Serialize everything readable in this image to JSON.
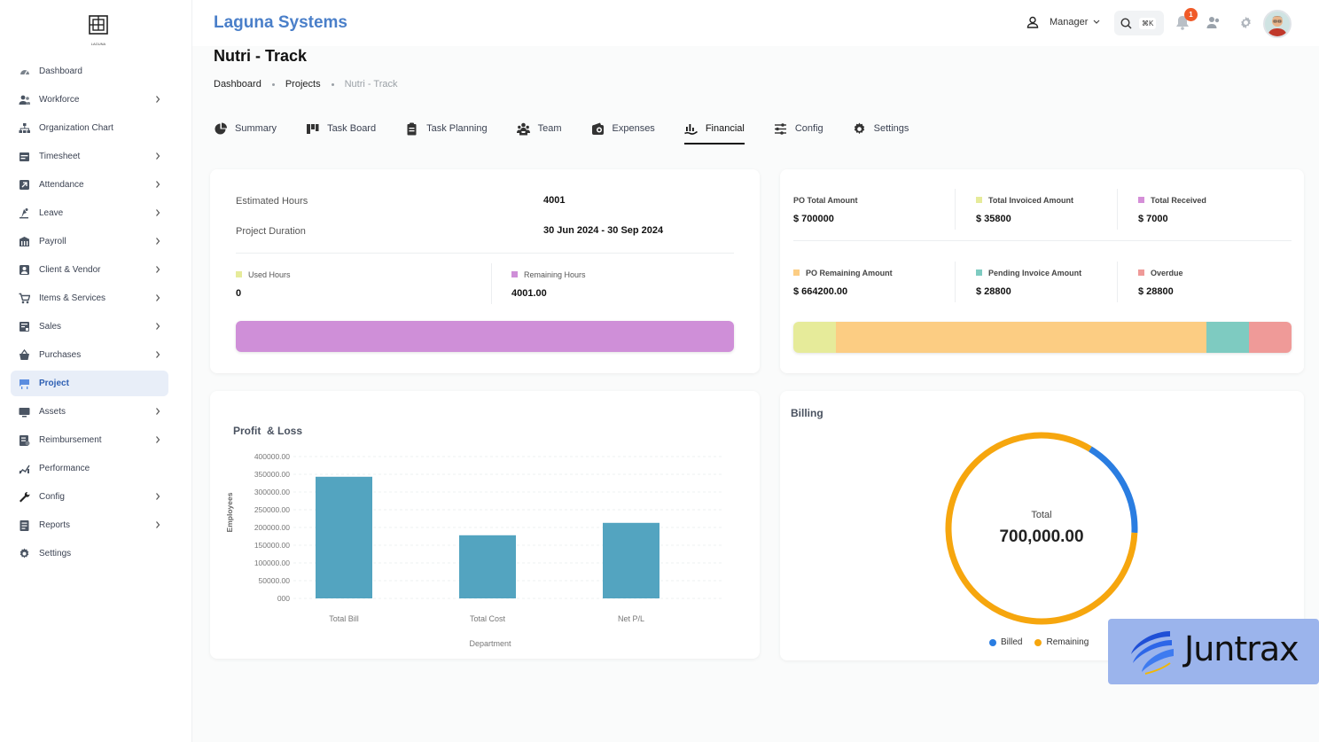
{
  "sidebar": {
    "items": [
      {
        "label": "Dashboard",
        "icon": "gauge-icon",
        "chevron": false
      },
      {
        "label": "Workforce",
        "icon": "users-icon",
        "chevron": true
      },
      {
        "label": "Organization Chart",
        "icon": "org-chart-icon",
        "chevron": false
      },
      {
        "label": "Timesheet",
        "icon": "calendar-icon",
        "chevron": true
      },
      {
        "label": "Attendance",
        "icon": "attendance-icon",
        "chevron": true
      },
      {
        "label": "Leave",
        "icon": "leave-icon",
        "chevron": true
      },
      {
        "label": "Payroll",
        "icon": "payroll-icon",
        "chevron": true
      },
      {
        "label": "Client & Vendor",
        "icon": "client-icon",
        "chevron": true
      },
      {
        "label": "Items & Services",
        "icon": "cart-icon",
        "chevron": true
      },
      {
        "label": "Sales",
        "icon": "sales-icon",
        "chevron": true
      },
      {
        "label": "Purchases",
        "icon": "basket-icon",
        "chevron": true
      },
      {
        "label": "Project",
        "icon": "project-icon",
        "chevron": false,
        "active": true
      },
      {
        "label": "Assets",
        "icon": "assets-icon",
        "chevron": true
      },
      {
        "label": "Reimbursement",
        "icon": "reimburse-icon",
        "chevron": true
      },
      {
        "label": "Performance",
        "icon": "performance-icon",
        "chevron": false
      },
      {
        "label": "Config",
        "icon": "wrench-icon",
        "chevron": true
      },
      {
        "label": "Reports",
        "icon": "reports-icon",
        "chevron": true
      },
      {
        "label": "Settings",
        "icon": "gear-icon",
        "chevron": false
      }
    ],
    "logo_text": "LAGUNA"
  },
  "header": {
    "brand": "Laguna Systems",
    "role": "Manager",
    "shortcut": "⌘K",
    "notifications": "1"
  },
  "page": {
    "title": "Nutri - Track",
    "breadcrumb": [
      "Dashboard",
      "Projects",
      "Nutri - Track"
    ]
  },
  "tabs": [
    {
      "label": "Summary",
      "icon": "pie-icon"
    },
    {
      "label": "Task Board",
      "icon": "board-icon"
    },
    {
      "label": "Task Planning",
      "icon": "clipboard-icon"
    },
    {
      "label": "Team",
      "icon": "team-icon"
    },
    {
      "label": "Expenses",
      "icon": "wallet-icon"
    },
    {
      "label": "Financial",
      "icon": "chart-hand-icon",
      "active": true
    },
    {
      "label": "Config",
      "icon": "sliders-icon"
    },
    {
      "label": "Settings",
      "icon": "gear-icon"
    }
  ],
  "hours": {
    "estimated_label": "Estimated Hours",
    "estimated_value": "4001",
    "duration_label": "Project Duration",
    "duration_value": "30 Jun 2024 - 30 Sep 2024",
    "used_label": "Used Hours",
    "used_value": "0",
    "remaining_label": "Remaining Hours",
    "remaining_value": "4001.00",
    "used_fraction": 0,
    "colors": {
      "used": "#e6eb9a",
      "remaining": "#cf8fd8"
    }
  },
  "amounts": {
    "items": [
      {
        "label": "PO Total Amount",
        "value": "$ 700000",
        "color": "#ffffff"
      },
      {
        "label": "Total Invoiced Amount",
        "value": "$ 35800",
        "color": "#e6eb9a"
      },
      {
        "label": "Total Received",
        "value": "$ 7000",
        "color": "#d58fd8"
      },
      {
        "label": "PO Remaining Amount",
        "value": "$ 664200.00",
        "color": "#fccd83"
      },
      {
        "label": "Pending Invoice Amount",
        "value": "$ 28800",
        "color": "#7ecbc1"
      },
      {
        "label": "Overdue",
        "value": "$ 28800",
        "color": "#ef9a98"
      }
    ],
    "bar_segments": [
      {
        "name": "Total Invoiced Amount",
        "value": 35800,
        "color": "#e6eb9a"
      },
      {
        "name": "PO Remaining Amount",
        "value": 664200,
        "color": "#fccd83"
      },
      {
        "name": "Pending Invoice Amount",
        "value": 28800,
        "color": "#7ecbc1"
      },
      {
        "name": "Overdue",
        "value": 28800,
        "color": "#ef9a98"
      }
    ]
  },
  "chart_data": [
    {
      "type": "bar",
      "title": "Profit  & Loss",
      "xlabel": "Department",
      "ylabel": "Employees",
      "categories": [
        "Total Bill",
        "Total Cost",
        "Net P/L"
      ],
      "values": [
        343000,
        178000,
        213000
      ],
      "ylim": [
        0,
        400000
      ],
      "yticks": [
        "000",
        "50000.00",
        "100000.00",
        "150000.00",
        "200000.00",
        "250000.00",
        "300000.00",
        "350000.00",
        "400000.00"
      ],
      "ytick_values": [
        0,
        50000,
        100000,
        150000,
        200000,
        250000,
        300000,
        350000,
        400000
      ],
      "grid": true,
      "color": "#53a4c0"
    },
    {
      "type": "pie",
      "title": "Billing",
      "center_label": "Total",
      "center_value": "700,000.00",
      "series": [
        {
          "name": "Billed",
          "value": 35800,
          "color": "#2a7de1"
        },
        {
          "name": "Remaining",
          "value": 664200,
          "color": "#f6a60e"
        }
      ],
      "legend": "bottom"
    }
  ],
  "watermark": {
    "text": "Juntrax"
  }
}
